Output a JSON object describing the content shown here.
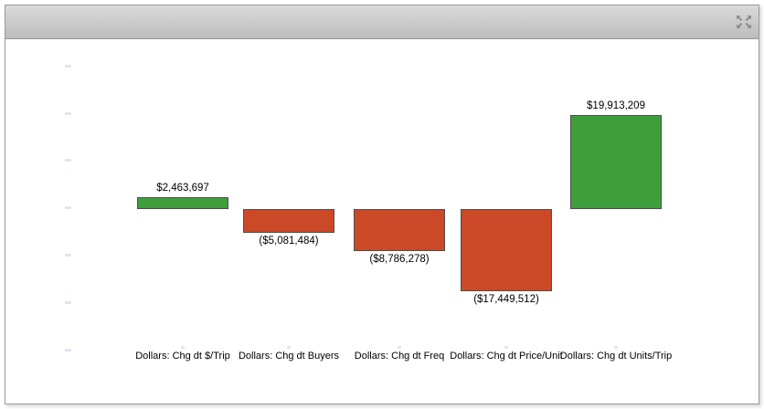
{
  "window": {
    "title": "",
    "titlebar_icon": "arrows-out-icon"
  },
  "colors": {
    "positive_bar": "#3f9e3c",
    "negative_bar": "#cc4928",
    "bar_border": "#4d4d4d",
    "axis_tick": "#dce7f3",
    "titlebar_top": "#dadada",
    "titlebar_bottom": "#bcbcbc",
    "window_border": "#9a9a9a",
    "icon_gray": "#8c8c8c",
    "label_text": "#000000"
  },
  "chart_data": {
    "type": "bar",
    "subtype": "waterfall-contribution",
    "title": "",
    "xlabel": "",
    "ylabel": "",
    "categories": [
      "Dollars: Chg dt $/Trip",
      "Dollars: Chg dt Buyers",
      "Dollars: Chg dt Freq",
      "Dollars: Chg dt Price/Unit",
      "Dollars: Chg dt Units/Trip"
    ],
    "values": [
      2463697,
      -5081484,
      -8786278,
      -17449512,
      19913209
    ],
    "data_labels": [
      "$2,463,697",
      "($5,081,484)",
      "($8,786,278)",
      "($17,449,512)",
      "$19,913,209"
    ],
    "ylim": [
      -30000000,
      30000000
    ],
    "y_tick_interval": 10000000,
    "y_tick_labels_visible": false,
    "grid": false,
    "legend_position": "none"
  }
}
